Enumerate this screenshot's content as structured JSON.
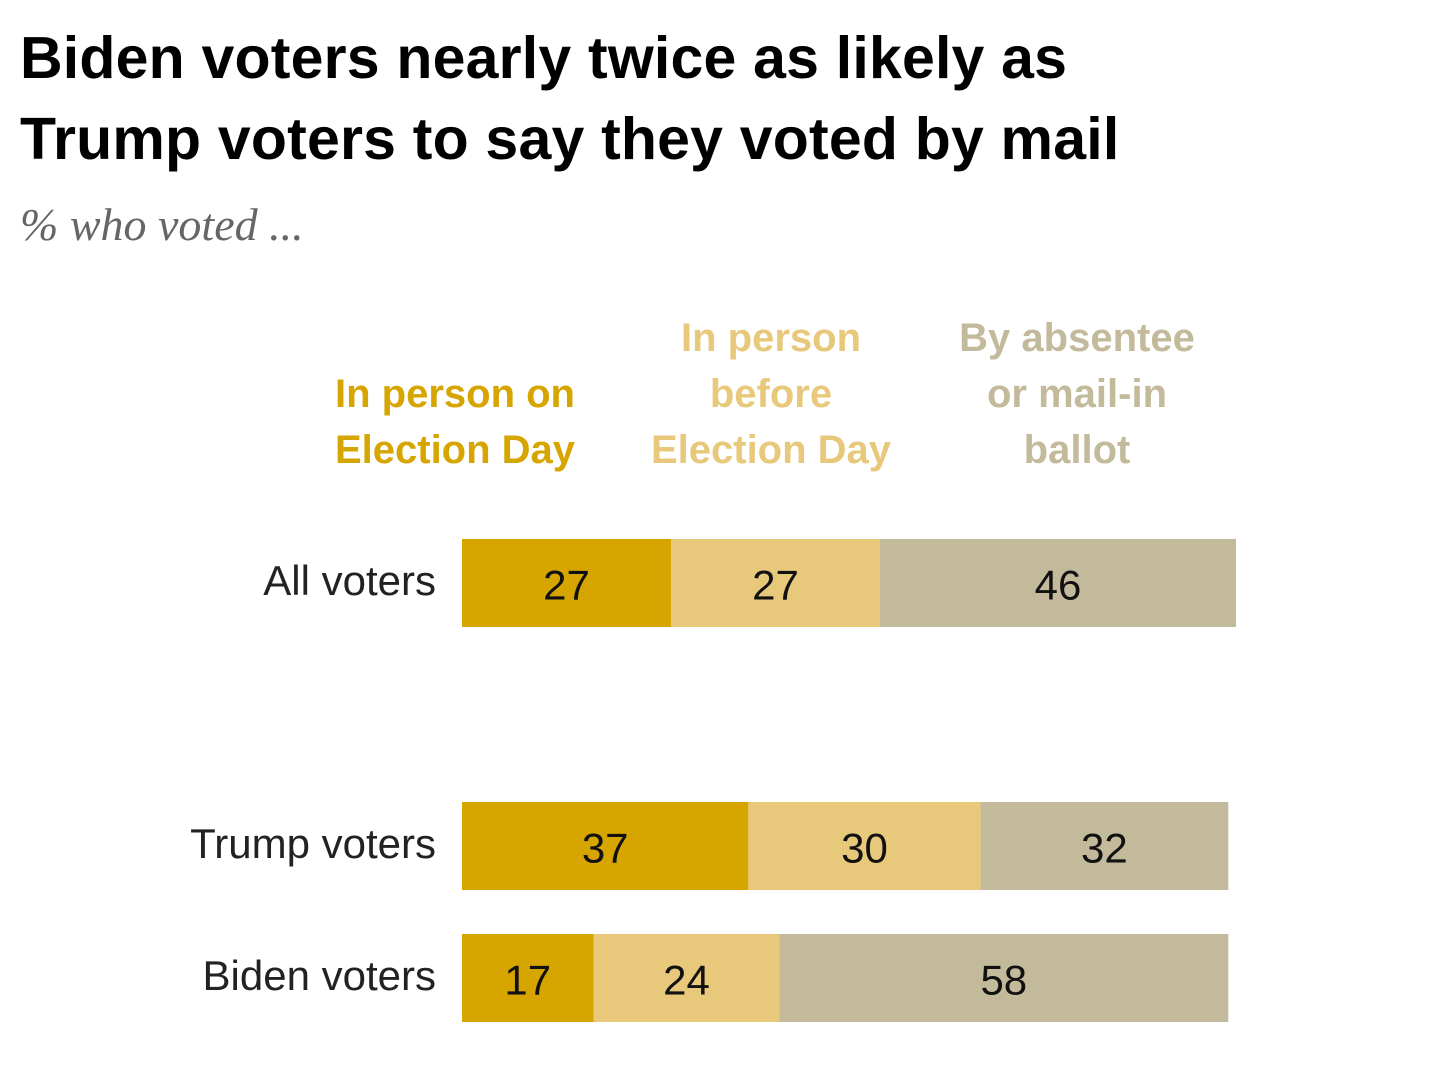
{
  "chart_data": {
    "type": "bar",
    "orientation": "horizontal",
    "stacked": true,
    "title": "Biden voters nearly twice as likely as Trump voters to say they voted by mail",
    "title_lines": [
      "Biden voters nearly twice as likely as",
      "Trump voters to say they voted by mail"
    ],
    "subtitle": "% who voted ...",
    "xlabel": "",
    "ylabel": "",
    "xlim": [
      0,
      100
    ],
    "grid": false,
    "legend_placement": "top",
    "categories": [
      "All voters",
      "Trump voters",
      "Biden voters"
    ],
    "series": [
      {
        "name": "In person on Election Day",
        "label_lines": [
          "In person on",
          "Election Day"
        ],
        "color": "#D6A500",
        "values": [
          27,
          37,
          17
        ]
      },
      {
        "name": "In person before Election Day",
        "label_lines": [
          "In person",
          "before",
          "Election Day"
        ],
        "color": "#E8C87A",
        "values": [
          27,
          30,
          24
        ]
      },
      {
        "name": "By absentee or mail-in ballot",
        "label_lines": [
          "By absentee",
          "or mail-in",
          "ballot"
        ],
        "color": "#C3BA9B",
        "values": [
          46,
          32,
          58
        ]
      }
    ]
  }
}
